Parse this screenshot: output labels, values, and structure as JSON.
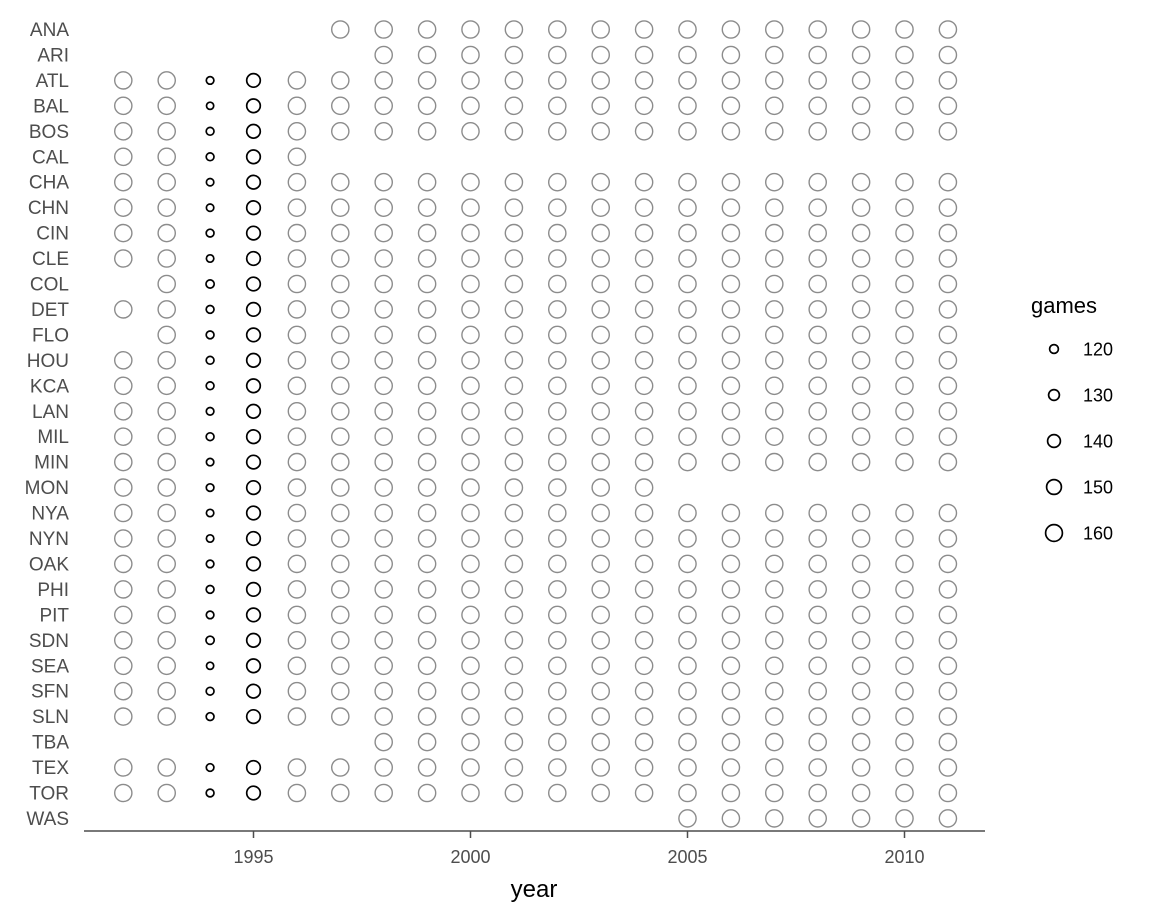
{
  "chart_data": {
    "type": "scatter",
    "xlabel": "year",
    "ylabel": "",
    "xlim": [
      1991.5,
      2011.9
    ],
    "x_ticks": [
      1995,
      2000,
      2005,
      2010
    ],
    "grid": false,
    "teams": [
      "ANA",
      "ARI",
      "ATL",
      "BAL",
      "BOS",
      "CAL",
      "CHA",
      "CHN",
      "CIN",
      "CLE",
      "COL",
      "DET",
      "FLO",
      "HOU",
      "KCA",
      "LAN",
      "MIL",
      "MIN",
      "MON",
      "NYA",
      "NYN",
      "OAK",
      "PHI",
      "PIT",
      "SDN",
      "SEA",
      "SFN",
      "SLN",
      "TBA",
      "TEX",
      "TOR",
      "WAS"
    ],
    "years": [
      1992,
      1993,
      1994,
      1995,
      1996,
      1997,
      1998,
      1999,
      2000,
      2001,
      2002,
      2003,
      2004,
      2005,
      2006,
      2007,
      2008,
      2009,
      2010,
      2011
    ],
    "team_years": {
      "ANA": [
        1997,
        2011
      ],
      "ARI": [
        1998,
        2011
      ],
      "ATL": [
        1992,
        2011
      ],
      "BAL": [
        1992,
        2011
      ],
      "BOS": [
        1992,
        2011
      ],
      "CAL": [
        1992,
        1996
      ],
      "CHA": [
        1992,
        2011
      ],
      "CHN": [
        1992,
        2011
      ],
      "CIN": [
        1992,
        2011
      ],
      "CLE": [
        1992,
        2011
      ],
      "COL": [
        1993,
        2011
      ],
      "DET": [
        1992,
        2011
      ],
      "FLO": [
        1993,
        2011
      ],
      "HOU": [
        1992,
        2011
      ],
      "KCA": [
        1992,
        2011
      ],
      "LAN": [
        1992,
        2011
      ],
      "MIL": [
        1992,
        2011
      ],
      "MIN": [
        1992,
        2011
      ],
      "MON": [
        1992,
        2004
      ],
      "NYA": [
        1992,
        2011
      ],
      "NYN": [
        1992,
        2011
      ],
      "OAK": [
        1992,
        2011
      ],
      "PHI": [
        1992,
        2011
      ],
      "PIT": [
        1992,
        2011
      ],
      "SDN": [
        1992,
        2011
      ],
      "SEA": [
        1992,
        2011
      ],
      "SFN": [
        1992,
        2011
      ],
      "SLN": [
        1992,
        2011
      ],
      "TBA": [
        1998,
        2011
      ],
      "TEX": [
        1992,
        2011
      ],
      "TOR": [
        1992,
        2011
      ],
      "WAS": [
        2005,
        2011
      ]
    },
    "default_games": 162,
    "games_1995": 144,
    "games_1994": {
      "ATL": 114,
      "BAL": 112,
      "BOS": 115,
      "CAL": 115,
      "CHA": 113,
      "CHN": 113,
      "CIN": 115,
      "CLE": 113,
      "COL": 117,
      "DET": 115,
      "FLO": 115,
      "HOU": 115,
      "KCA": 115,
      "LAN": 114,
      "MIL": 115,
      "MIN": 113,
      "MON": 114,
      "NYA": 113,
      "NYN": 113,
      "OAK": 114,
      "PHI": 115,
      "PIT": 114,
      "SDN": 117,
      "SEA": 112,
      "SFN": 115,
      "SLN": 115,
      "TEX": 114,
      "TOR": 115
    },
    "highlight_years": [
      1994,
      1995
    ],
    "colors": {
      "highlight": "#000000",
      "other": "#8c8c8c",
      "axis": "#4d4d4d"
    },
    "legend": {
      "title": "games",
      "placement": "right",
      "items": [
        {
          "label": "120",
          "value": 120
        },
        {
          "label": "130",
          "value": 130
        },
        {
          "label": "140",
          "value": 140
        },
        {
          "label": "150",
          "value": 150
        },
        {
          "label": "160",
          "value": 160
        }
      ]
    }
  }
}
